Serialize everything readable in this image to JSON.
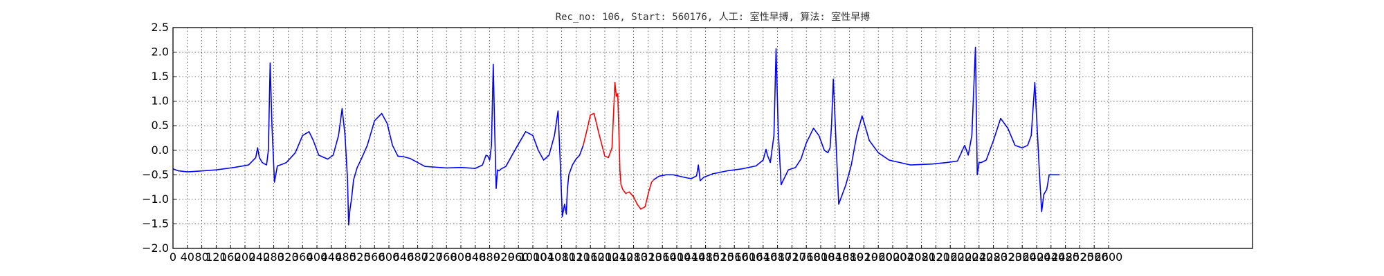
{
  "chart_data": {
    "type": "line",
    "title": "Rec_no: 106, Start: 560176, 人工: 室性早搏, 算法: 室性早搏",
    "xlabel": "",
    "ylabel": "",
    "xlim": [
      0,
      3000
    ],
    "ylim": [
      -2.0,
      2.5
    ],
    "grid": true,
    "yticks": [
      -2.0,
      -1.5,
      -1.0,
      -0.5,
      0.0,
      0.5,
      1.0,
      1.5,
      2.0,
      2.5
    ],
    "ytick_labels": [
      "−2.0",
      "−1.5",
      "−1.0",
      "−0.5",
      "0.0",
      "0.5",
      "1.0",
      "1.5",
      "2.0",
      "2.5"
    ],
    "xticks": [
      0,
      40,
      80,
      120,
      160,
      200,
      240,
      280,
      320,
      360,
      400,
      440,
      480,
      520,
      560,
      600,
      640,
      680,
      720,
      760,
      800,
      840,
      880,
      920,
      960,
      1000,
      1040,
      1080,
      1120,
      1160,
      1200,
      1240,
      1280,
      1320,
      1360,
      1400,
      1440,
      1480,
      1520,
      1560,
      1600,
      1640,
      1680,
      1720,
      1760,
      1800,
      1840,
      1880,
      1920,
      1960,
      2000,
      2040,
      2080,
      2120,
      2160,
      2200,
      2240,
      2280,
      2320,
      2360,
      2400,
      2440,
      2480,
      2520,
      2560,
      2600
    ],
    "xtick_labels": [
      "0",
      "40",
      "80",
      "120",
      "160",
      "200",
      "240",
      "280",
      "320",
      "360",
      "400",
      "440",
      "480",
      "520",
      "560",
      "600",
      "640",
      "680",
      "720",
      "760",
      "800",
      "840",
      "880",
      "920",
      "960",
      "1000",
      "1040",
      "1080",
      "1120",
      "1160",
      "1200",
      "1240",
      "1280",
      "1320",
      "1360",
      "1400",
      "1440",
      "1480",
      "1520",
      "1560",
      "1600",
      "1640",
      "1680",
      "1720",
      "1760",
      "1800",
      "1840",
      "1880",
      "1920",
      "1960",
      "2000",
      "2040",
      "2080",
      "2120",
      "2160",
      "2200",
      "2240",
      "2280",
      "2320",
      "2360",
      "2400",
      "2440",
      "2480",
      "2520",
      "2560",
      "2600"
    ],
    "series": [
      {
        "color": "#0000ff",
        "x": [
          0,
          15,
          40,
          60,
          120,
          170,
          210,
          230,
          235,
          240,
          248,
          255,
          260,
          265,
          270,
          275,
          282,
          290,
          305,
          315,
          340,
          360,
          378,
          390,
          405,
          430,
          445,
          460,
          470,
          478,
          485,
          488,
          492,
          496,
          502,
          512,
          522,
          540,
          560,
          580,
          595,
          610,
          625,
          640,
          660,
          680,
          700,
          760,
          800,
          840,
          860,
          870,
          875,
          880,
          885,
          890,
          894,
          898,
          902,
          906,
          912,
          925,
          950,
          980,
          1000,
          1015,
          1030,
          1045,
          1060,
          1070,
          1076,
          1082,
          1088,
          1093,
          1096,
          1100,
          1110,
          1120,
          1130,
          1140
        ],
        "y": [
          -0.38,
          -0.42,
          -0.44,
          -0.43,
          -0.4,
          -0.35,
          -0.3,
          -0.15,
          0.05,
          -0.15,
          -0.25,
          -0.28,
          -0.3,
          0.0,
          1.78,
          0.5,
          -0.65,
          -0.32,
          -0.28,
          -0.25,
          -0.05,
          0.3,
          0.38,
          0.2,
          -0.1,
          -0.18,
          -0.1,
          0.3,
          0.85,
          0.3,
          -0.6,
          -1.52,
          -1.2,
          -1.0,
          -0.6,
          -0.35,
          -0.2,
          0.1,
          0.6,
          0.75,
          0.55,
          0.1,
          -0.12,
          -0.13,
          -0.17,
          -0.25,
          -0.33,
          -0.36,
          -0.35,
          -0.37,
          -0.3,
          -0.1,
          -0.12,
          -0.2,
          0.1,
          1.75,
          0.4,
          -0.78,
          -0.4,
          -0.42,
          -0.38,
          -0.33,
          0.0,
          0.38,
          0.3,
          0.0,
          -0.2,
          -0.1,
          0.3,
          0.8,
          -0.2,
          -1.35,
          -1.1,
          -1.3,
          -0.8,
          -0.5,
          -0.3,
          -0.18,
          -0.1,
          0.1
        ]
      },
      {
        "color": "#ff0000",
        "x": [
          1140,
          1150,
          1160,
          1170,
          1185,
          1200,
          1210,
          1220,
          1228,
          1232,
          1236,
          1239,
          1242,
          1245,
          1250,
          1258,
          1268,
          1280,
          1290,
          1300,
          1312,
          1322,
          1330,
          1336
        ],
        "y": [
          0.1,
          0.4,
          0.72,
          0.75,
          0.3,
          -0.12,
          -0.15,
          0.05,
          1.38,
          1.1,
          1.15,
          0.4,
          -0.4,
          -0.7,
          -0.8,
          -0.88,
          -0.85,
          -0.95,
          -1.1,
          -1.2,
          -1.15,
          -0.85,
          -0.65,
          -0.6
        ]
      },
      {
        "color": "#0000ff",
        "x": [
          1336,
          1350,
          1370,
          1390,
          1420,
          1440,
          1455,
          1460,
          1465,
          1475,
          1500,
          1540,
          1580,
          1620,
          1640,
          1648,
          1652,
          1660,
          1670,
          1676,
          1682,
          1690,
          1710,
          1730,
          1745,
          1760,
          1780,
          1795,
          1810,
          1820,
          1826,
          1830,
          1835,
          1850,
          1870,
          1885,
          1900,
          1915,
          1935,
          1960,
          1990,
          2050,
          2110,
          2150,
          2180,
          2200,
          2210,
          2220,
          2230,
          2235,
          2240,
          2246,
          2260,
          2280,
          2300,
          2320,
          2340,
          2360,
          2375,
          2385,
          2395,
          2402,
          2408,
          2414,
          2420,
          2428,
          2435,
          2440,
          2447,
          2455,
          2464
        ],
        "y": [
          -0.6,
          -0.53,
          -0.5,
          -0.5,
          -0.55,
          -0.58,
          -0.52,
          -0.3,
          -0.62,
          -0.55,
          -0.48,
          -0.42,
          -0.38,
          -0.32,
          -0.2,
          0.02,
          -0.1,
          -0.25,
          0.3,
          2.07,
          0.4,
          -0.7,
          -0.4,
          -0.35,
          -0.18,
          0.15,
          0.45,
          0.3,
          0.0,
          -0.05,
          0.05,
          0.5,
          1.45,
          -1.1,
          -0.7,
          -0.3,
          0.3,
          0.7,
          0.2,
          -0.05,
          -0.2,
          -0.3,
          -0.28,
          -0.25,
          -0.22,
          0.1,
          -0.1,
          0.3,
          2.1,
          -0.5,
          -0.25,
          -0.25,
          -0.2,
          0.2,
          0.65,
          0.45,
          0.1,
          0.05,
          0.1,
          0.3,
          1.38,
          0.4,
          -0.5,
          -1.25,
          -0.9,
          -0.8,
          -0.5,
          -0.5,
          -0.5,
          -0.5,
          -0.5
        ]
      }
    ]
  }
}
